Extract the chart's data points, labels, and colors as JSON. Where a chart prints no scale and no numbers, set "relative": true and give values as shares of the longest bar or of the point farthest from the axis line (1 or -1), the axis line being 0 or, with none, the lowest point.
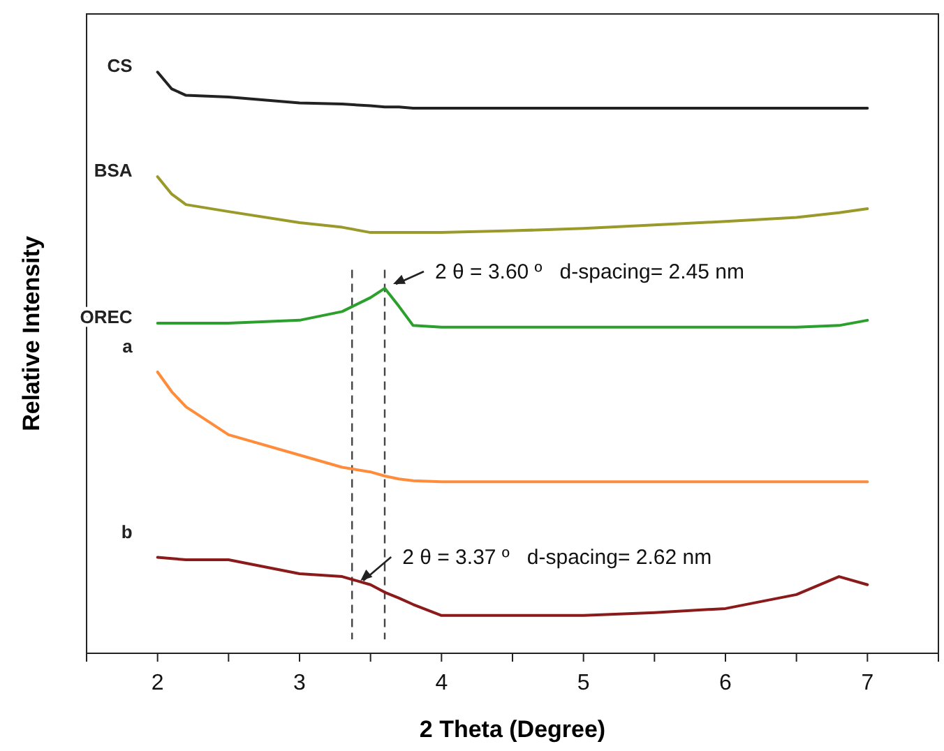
{
  "chart_data": {
    "type": "line",
    "xlabel": "2 Theta (Degree)",
    "ylabel": "Relative Intensity",
    "relative": true,
    "xlim": [
      1.5,
      7.5
    ],
    "xticks": [
      {
        "value": 1.5,
        "label": null
      },
      2,
      {
        "value": 2.5,
        "label": null
      },
      3,
      {
        "value": 3.5,
        "label": null
      },
      4,
      {
        "value": 4.5,
        "label": null
      },
      5,
      {
        "value": 5.5,
        "label": null
      },
      6,
      {
        "value": 6.5,
        "label": null
      },
      7,
      {
        "value": 7.5,
        "label": null
      }
    ],
    "x": [
      2.0,
      2.1,
      2.2,
      2.5,
      3.0,
      3.3,
      3.5,
      3.6,
      3.7,
      3.8,
      4.0,
      4.5,
      5.0,
      5.5,
      6.0,
      6.5,
      6.8,
      7.0
    ],
    "series": [
      {
        "name": "CS",
        "color": "#222222",
        "values": [
          1.0,
          0.971,
          0.96,
          0.957,
          0.947,
          0.945,
          0.942,
          0.94,
          0.94,
          0.938,
          0.938,
          0.938,
          0.938,
          0.938,
          0.938,
          0.938,
          0.938,
          0.938
        ]
      },
      {
        "name": "BSA",
        "color": "#9a9a2a",
        "values": [
          0.82,
          0.79,
          0.772,
          0.76,
          0.741,
          0.733,
          0.724,
          0.724,
          0.724,
          0.724,
          0.724,
          0.727,
          0.731,
          0.737,
          0.743,
          0.75,
          0.758,
          0.765
        ]
      },
      {
        "name": "OREC",
        "color": "#2ca02c",
        "values": [
          0.568,
          0.568,
          0.568,
          0.568,
          0.573,
          0.588,
          0.612,
          0.628,
          0.597,
          0.564,
          0.561,
          0.561,
          0.561,
          0.561,
          0.561,
          0.561,
          0.564,
          0.573
        ]
      },
      {
        "name": "a",
        "color": "#ff8c3a",
        "values": [
          0.484,
          0.45,
          0.424,
          0.376,
          0.341,
          0.32,
          0.312,
          0.305,
          0.3,
          0.297,
          0.295,
          0.295,
          0.295,
          0.295,
          0.295,
          0.295,
          0.295,
          0.295
        ]
      },
      {
        "name": "b",
        "color": "#8b1a1a",
        "values": [
          0.165,
          0.163,
          0.161,
          0.161,
          0.137,
          0.132,
          0.118,
          0.105,
          0.095,
          0.084,
          0.065,
          0.065,
          0.065,
          0.07,
          0.077,
          0.101,
          0.132,
          0.118
        ]
      }
    ],
    "ref_lines": [
      {
        "axis": "x",
        "value": 3.37,
        "line_style": "dashed",
        "color": "#444444"
      },
      {
        "axis": "x",
        "value": 3.6,
        "line_style": "dashed",
        "color": "#444444"
      }
    ],
    "annotations": [
      {
        "text": "2 θ = 3.60 º   d-spacing= 2.45 nm",
        "x": 3.6,
        "y": 0.628
      },
      {
        "text": "2 θ = 3.37 º   d-spacing= 2.62 nm",
        "x": 3.37,
        "y": 0.132
      }
    ],
    "grid": false,
    "legend": false,
    "marker": "none",
    "line_style": "solid"
  }
}
